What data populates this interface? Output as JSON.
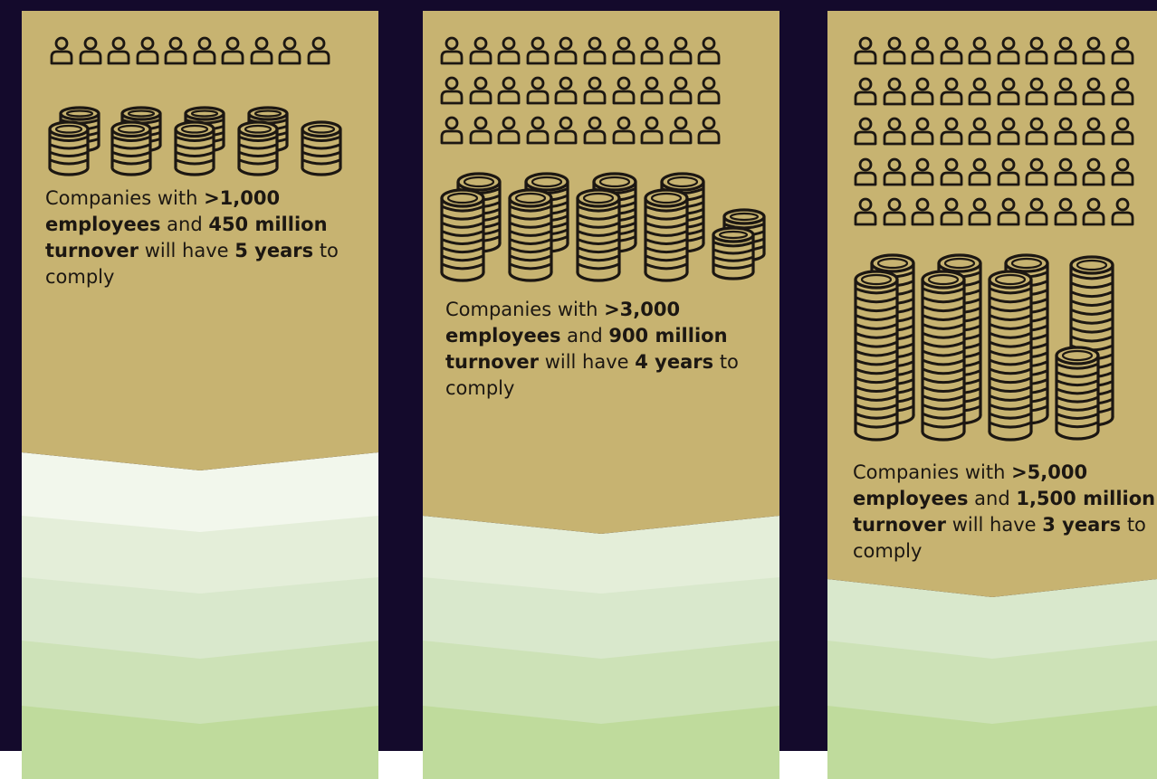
{
  "columns": [
    {
      "text": {
        "prefix": "Companies with ",
        "employees_threshold": ">1,000",
        "employees_word": "employees",
        "and_word": " and ",
        "turnover_amount": "450 million",
        "turnover_word": "turnover",
        "will_have": " will have ",
        "years": "5 years",
        "to_word": " to",
        "comply_word": "comply"
      },
      "person_icon_count": 10,
      "coin_stack_count": 9
    },
    {
      "text": {
        "prefix": "Companies with ",
        "employees_threshold": ">3,000",
        "employees_word": "employees",
        "and_word": " and ",
        "turnover_amount": "900 million",
        "turnover_word": "turnover",
        "will_have": " will have ",
        "years": "4 years",
        "to_word": " to",
        "comply_word": "comply"
      },
      "person_icon_count": 30,
      "coin_stack_count": 10
    },
    {
      "text": {
        "prefix": "Companies with ",
        "employees_threshold": ">5,000",
        "employees_word": "employees",
        "and_word": " and ",
        "turnover_amount": "1,500 million",
        "turnover_word": "turnover",
        "will_have": " will have ",
        "years": "3 years",
        "to_word": " to",
        "comply_word": "comply"
      },
      "person_icon_count": 50,
      "coin_stack_count": 8
    }
  ],
  "colors": {
    "background": "#140a2c",
    "tan": "#c7b371",
    "ink": "#1c1712",
    "green_bands": [
      "#f2f7ec",
      "#e4eed9",
      "#d9e8cc",
      "#cde2b7",
      "#bfdb9c"
    ]
  },
  "icons": {
    "person": "person-outline-icon",
    "coins": "coin-stack-icon"
  }
}
